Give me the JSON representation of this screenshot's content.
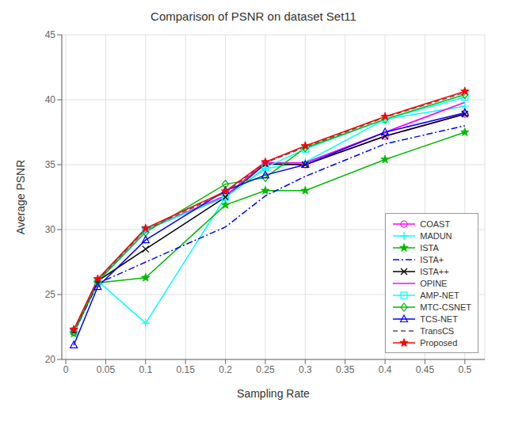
{
  "chart_data": {
    "type": "line",
    "title": "Comparison of PSNR on dataset Set11",
    "x_label": "Sampling Rate",
    "y_label": "Average PSNR",
    "x": [
      0.01,
      0.04,
      0.1,
      0.2,
      0.25,
      0.3,
      0.4,
      0.5
    ],
    "xlim": [
      -0.005,
      0.525
    ],
    "ylim": [
      20,
      45
    ],
    "xticks": [
      0,
      0.05,
      0.1,
      0.15,
      0.2,
      0.25,
      0.3,
      0.35,
      0.4,
      0.45,
      0.5
    ],
    "yticks": [
      20,
      25,
      30,
      35,
      40,
      45
    ],
    "grid": true,
    "legend": "lower right",
    "series": [
      {
        "name": "COAST",
        "color": "#FF00FF",
        "marker": "circle",
        "line_style": "solid",
        "values": [
          22.2,
          26.05,
          30.0,
          32.5,
          35.1,
          35.0,
          37.2,
          38.9
        ]
      },
      {
        "name": "MADUN",
        "color": "#00FFFF",
        "marker": "plus",
        "line_style": "solid",
        "values": [
          22.2,
          26.05,
          22.8,
          32.5,
          34.7,
          35.2,
          38.5,
          39.5
        ]
      },
      {
        "name": "ISTA",
        "color": "#00BB00",
        "marker": "star",
        "line_style": "solid",
        "values": [
          22.0,
          25.9,
          26.3,
          31.9,
          33.0,
          33.0,
          35.4,
          37.5
        ]
      },
      {
        "name": "ISTA+",
        "color": "#0000FF",
        "marker": "none",
        "line_style": "dashdot",
        "values": [
          22.05,
          25.85,
          27.5,
          30.2,
          32.6,
          34.1,
          36.6,
          38.0
        ]
      },
      {
        "name": "ISTA++",
        "color": "#000000",
        "marker": "x",
        "line_style": "solid",
        "values": [
          22.15,
          26.05,
          28.5,
          32.5,
          35.05,
          35.0,
          37.2,
          38.9
        ]
      },
      {
        "name": "OPINE",
        "color": "#FF00FF",
        "marker": "none",
        "line_style": "solid",
        "values": [
          22.2,
          26.1,
          30.0,
          32.6,
          35.15,
          35.15,
          37.5,
          39.8
        ]
      },
      {
        "name": "AMP-NET",
        "color": "#00FFFF",
        "marker": "square",
        "line_style": "solid",
        "values": [
          22.2,
          26.05,
          30.0,
          32.5,
          34.8,
          36.2,
          38.5,
          40.2
        ]
      },
      {
        "name": "MTC-CSNET",
        "color": "#00BB00",
        "marker": "diamond",
        "line_style": "solid",
        "values": [
          22.1,
          26.0,
          29.8,
          33.5,
          34.0,
          36.3,
          38.5,
          40.4
        ]
      },
      {
        "name": "TCS-NET",
        "color": "#0000FF",
        "marker": "triangle",
        "line_style": "solid",
        "values": [
          21.1,
          25.6,
          29.2,
          33.0,
          34.2,
          35.0,
          37.5,
          39.0
        ]
      },
      {
        "name": "TransCS",
        "color": "#555555",
        "marker": "none",
        "line_style": "dashed",
        "values": [
          22.2,
          26.1,
          30.0,
          32.85,
          35.15,
          36.35,
          38.65,
          40.55
        ]
      },
      {
        "name": "Proposed",
        "color": "#FF0000",
        "marker": "star",
        "line_style": "solid",
        "values": [
          22.3,
          26.2,
          30.1,
          32.95,
          35.2,
          36.45,
          38.7,
          40.65
        ]
      }
    ]
  }
}
